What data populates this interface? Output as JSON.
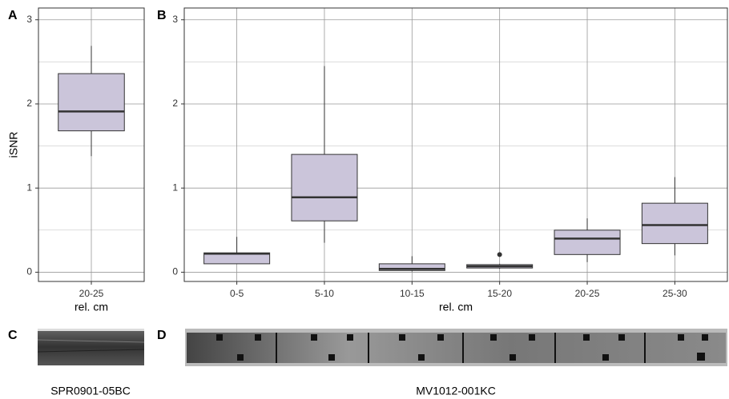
{
  "chart_data": [
    {
      "type": "box",
      "panel_label": "A",
      "y_label": "iSNR",
      "x_label": "rel. cm",
      "categories": [
        "20-25"
      ],
      "boxes": [
        {
          "whislo": 1.38,
          "q1": 1.68,
          "med": 1.91,
          "q3": 2.36,
          "whishi": 2.69,
          "fliers": []
        }
      ],
      "color": "#cbc5da",
      "ylim": [
        -0.11,
        3.14
      ],
      "yticks": [
        0,
        1,
        2,
        3
      ],
      "minor_yticks": [
        0.5,
        1.5,
        2.5
      ],
      "grid": true
    },
    {
      "type": "box",
      "panel_label": "B",
      "x_label": "rel. cm",
      "categories": [
        "0-5",
        "5-10",
        "10-15",
        "15-20",
        "20-25",
        "25-30"
      ],
      "boxes": [
        {
          "whislo": 0.1,
          "q1": 0.1,
          "med": 0.22,
          "q3": 0.23,
          "whishi": 0.42,
          "fliers": []
        },
        {
          "whislo": 0.35,
          "q1": 0.61,
          "med": 0.89,
          "q3": 1.4,
          "whishi": 2.45,
          "fliers": []
        },
        {
          "whislo": 0.01,
          "q1": 0.02,
          "med": 0.04,
          "q3": 0.1,
          "whishi": 0.19,
          "fliers": []
        },
        {
          "whislo": 0.04,
          "q1": 0.05,
          "med": 0.07,
          "q3": 0.09,
          "whishi": 0.1,
          "fliers": [
            0.21
          ]
        },
        {
          "whislo": 0.12,
          "q1": 0.21,
          "med": 0.4,
          "q3": 0.5,
          "whishi": 0.64,
          "fliers": []
        },
        {
          "whislo": 0.2,
          "q1": 0.34,
          "med": 0.56,
          "q3": 0.82,
          "whishi": 1.13,
          "fliers": []
        }
      ],
      "color": "#cbc5da",
      "ylim": [
        -0.11,
        3.14
      ],
      "yticks": [
        0,
        1,
        2,
        3
      ],
      "minor_yticks": [
        0.5,
        1.5,
        2.5
      ],
      "grid": true
    }
  ],
  "images": [
    {
      "panel_label": "C",
      "caption": "SPR0901-05BC"
    },
    {
      "panel_label": "D",
      "caption": "MV1012-001KC"
    }
  ]
}
